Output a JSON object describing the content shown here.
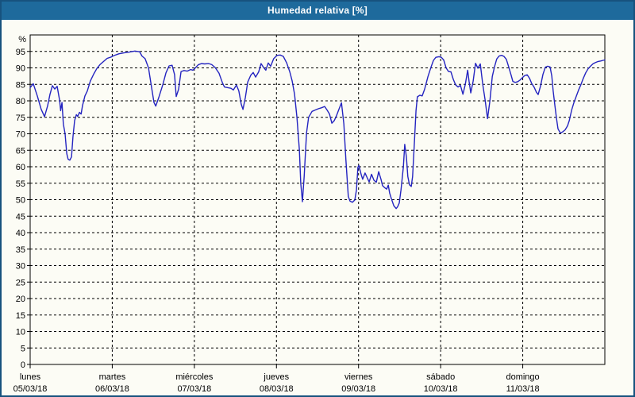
{
  "header": {
    "title": "Humedad relativa [%]"
  },
  "colors": {
    "titlebar_bg": "#1e6a9c",
    "titlebar_text": "#ffffff",
    "page_bg": "#fcfcf5",
    "page_border": "#17527e",
    "grid": "#000000",
    "axis": "#000000",
    "line": "#2424c0"
  },
  "chart_data": {
    "type": "line",
    "title": "Humedad relativa [%]",
    "unit_label": "%",
    "legend": "none",
    "grid": "dashed",
    "y_axis": {
      "min": 0,
      "max": 100,
      "tick_step": 5,
      "tick_labels": [
        "0",
        "5",
        "10",
        "15",
        "20",
        "25",
        "30",
        "35",
        "40",
        "45",
        "50",
        "55",
        "60",
        "65",
        "70",
        "75",
        "80",
        "85",
        "90",
        "95"
      ]
    },
    "x_axis": {
      "total_hours": 168,
      "hours_per_day": 24,
      "labels": [
        {
          "day": "lunes",
          "date": "05/03/18"
        },
        {
          "day": "martes",
          "date": "06/03/18"
        },
        {
          "day": "miércoles",
          "date": "07/03/18"
        },
        {
          "day": "jueves",
          "date": "08/03/18"
        },
        {
          "day": "viernes",
          "date": "09/03/18"
        },
        {
          "day": "sábado",
          "date": "10/03/18"
        },
        {
          "day": "domingo",
          "date": "11/03/18"
        }
      ]
    },
    "series_name": "Humedad relativa",
    "points": [
      [
        0,
        84
      ],
      [
        0.9,
        85.2
      ],
      [
        2.1,
        81.5
      ],
      [
        3.2,
        77.5
      ],
      [
        4.2,
        75.2
      ],
      [
        5.1,
        78.5
      ],
      [
        5.8,
        82
      ],
      [
        6.5,
        84.6
      ],
      [
        7.2,
        83.6
      ],
      [
        7.9,
        84.4
      ],
      [
        8.6,
        80.2
      ],
      [
        8.9,
        77
      ],
      [
        9.3,
        79.5
      ],
      [
        9.7,
        73
      ],
      [
        10.2,
        70
      ],
      [
        10.7,
        64
      ],
      [
        11.1,
        62.3
      ],
      [
        11.6,
        62
      ],
      [
        12.1,
        63
      ],
      [
        12.5,
        69
      ],
      [
        13,
        74
      ],
      [
        13.5,
        75.8
      ],
      [
        13.9,
        75.3
      ],
      [
        14.4,
        76.5
      ],
      [
        14.9,
        76
      ],
      [
        15.3,
        78.5
      ],
      [
        16,
        81.5
      ],
      [
        16.7,
        83
      ],
      [
        17.6,
        86
      ],
      [
        18.6,
        88.2
      ],
      [
        19.5,
        89.8
      ],
      [
        20.4,
        91
      ],
      [
        21.3,
        91.8
      ],
      [
        22.5,
        92.9
      ],
      [
        23.7,
        93.3
      ],
      [
        24.4,
        93.7
      ],
      [
        26,
        94.3
      ],
      [
        27.6,
        94.6
      ],
      [
        29,
        94.8
      ],
      [
        30.6,
        95.1
      ],
      [
        32,
        94.9
      ],
      [
        32.7,
        93.6
      ],
      [
        33.6,
        92.8
      ],
      [
        34.6,
        90
      ],
      [
        35.5,
        84
      ],
      [
        36.2,
        79.5
      ],
      [
        36.7,
        78.4
      ],
      [
        37.6,
        81
      ],
      [
        38.8,
        85
      ],
      [
        39.7,
        88.5
      ],
      [
        40.6,
        90.6
      ],
      [
        41.5,
        90.8
      ],
      [
        42.2,
        88
      ],
      [
        42.7,
        81.3
      ],
      [
        43.4,
        83.5
      ],
      [
        44.1,
        88.9
      ],
      [
        45,
        89.2
      ],
      [
        45.9,
        89
      ],
      [
        46.9,
        89.5
      ],
      [
        47.6,
        89.3
      ],
      [
        48.3,
        90
      ],
      [
        49.2,
        91
      ],
      [
        50.1,
        91.3
      ],
      [
        51,
        91.2
      ],
      [
        52.2,
        91.3
      ],
      [
        53.1,
        91
      ],
      [
        54.1,
        90.1
      ],
      [
        55.2,
        88.4
      ],
      [
        56.2,
        85.5
      ],
      [
        56.8,
        84.2
      ],
      [
        57.8,
        84
      ],
      [
        58.7,
        83.8
      ],
      [
        59.4,
        83.3
      ],
      [
        60.3,
        84.8
      ],
      [
        61,
        83
      ],
      [
        61.7,
        79
      ],
      [
        62.2,
        77.4
      ],
      [
        62.9,
        81
      ],
      [
        63.6,
        85.7
      ],
      [
        64.5,
        87.8
      ],
      [
        65.2,
        88.6
      ],
      [
        65.9,
        87.2
      ],
      [
        66.8,
        88.8
      ],
      [
        67.5,
        91.3
      ],
      [
        68.2,
        90.2
      ],
      [
        68.9,
        89.3
      ],
      [
        69.6,
        91.5
      ],
      [
        70.3,
        90.5
      ],
      [
        71.2,
        92.8
      ],
      [
        72.2,
        93.8
      ],
      [
        73.1,
        93.9
      ],
      [
        74,
        93.5
      ],
      [
        75,
        91.5
      ],
      [
        75.9,
        88.8
      ],
      [
        76.6,
        86
      ],
      [
        77.3,
        82
      ],
      [
        78,
        75
      ],
      [
        78.7,
        65
      ],
      [
        79.1,
        55
      ],
      [
        79.6,
        49.4
      ],
      [
        80.1,
        57
      ],
      [
        80.8,
        70.3
      ],
      [
        81.4,
        75
      ],
      [
        82.4,
        76.8
      ],
      [
        83.3,
        77.2
      ],
      [
        84.2,
        77.6
      ],
      [
        85.2,
        77.9
      ],
      [
        86.1,
        78.3
      ],
      [
        86.8,
        77.2
      ],
      [
        87.5,
        76
      ],
      [
        88.2,
        73.2
      ],
      [
        88.9,
        74
      ],
      [
        89.6,
        75.6
      ],
      [
        90.3,
        77.5
      ],
      [
        91,
        79.4
      ],
      [
        91.7,
        73
      ],
      [
        92.3,
        62
      ],
      [
        93,
        51
      ],
      [
        93.5,
        49.6
      ],
      [
        94.2,
        49.2
      ],
      [
        94.9,
        49.9
      ],
      [
        95.4,
        53
      ],
      [
        95.8,
        59.8
      ],
      [
        96.1,
        60.4
      ],
      [
        96.8,
        57.5
      ],
      [
        97.2,
        56.2
      ],
      [
        97.9,
        58.1
      ],
      [
        98.6,
        56.5
      ],
      [
        99.1,
        55.4
      ],
      [
        99.8,
        57.7
      ],
      [
        100.5,
        55.9
      ],
      [
        101.2,
        55.3
      ],
      [
        101.9,
        58.5
      ],
      [
        102.6,
        56
      ],
      [
        103,
        54.3
      ],
      [
        103.7,
        53.6
      ],
      [
        104.2,
        53.2
      ],
      [
        104.7,
        54.4
      ],
      [
        105.1,
        52
      ],
      [
        105.6,
        50.3
      ],
      [
        106.3,
        48.2
      ],
      [
        107,
        47.3
      ],
      [
        107.4,
        47.8
      ],
      [
        107.9,
        49
      ],
      [
        108.4,
        53
      ],
      [
        109.1,
        60
      ],
      [
        109.5,
        66.8
      ],
      [
        110,
        63
      ],
      [
        110.4,
        57
      ],
      [
        110.9,
        54.5
      ],
      [
        111.4,
        54
      ],
      [
        111.8,
        57
      ],
      [
        112.3,
        67
      ],
      [
        112.8,
        77
      ],
      [
        113.2,
        81.2
      ],
      [
        113.9,
        81.7
      ],
      [
        114.6,
        81.5
      ],
      [
        115.3,
        83.5
      ],
      [
        116.3,
        87.4
      ],
      [
        117.2,
        90.3
      ],
      [
        117.9,
        92.3
      ],
      [
        118.6,
        93.2
      ],
      [
        119.5,
        93.4
      ],
      [
        120.2,
        93.2
      ],
      [
        120.9,
        92.4
      ],
      [
        121.6,
        90
      ],
      [
        122.3,
        88.9
      ],
      [
        123,
        88.8
      ],
      [
        123.7,
        86.5
      ],
      [
        124.4,
        84.8
      ],
      [
        125.1,
        84.2
      ],
      [
        125.8,
        84.7
      ],
      [
        126.5,
        82
      ],
      [
        127.2,
        85
      ],
      [
        127.9,
        89.3
      ],
      [
        128.3,
        86
      ],
      [
        128.8,
        82.4
      ],
      [
        129.5,
        86
      ],
      [
        130.2,
        91.4
      ],
      [
        130.9,
        89.9
      ],
      [
        131.6,
        91.2
      ],
      [
        132.3,
        85
      ],
      [
        133,
        80.2
      ],
      [
        133.7,
        74.6
      ],
      [
        134.4,
        80
      ],
      [
        135.1,
        87.4
      ],
      [
        135.8,
        90.5
      ],
      [
        136.4,
        92.7
      ],
      [
        137.1,
        93.6
      ],
      [
        137.8,
        93.8
      ],
      [
        138.5,
        93.5
      ],
      [
        139.2,
        92.6
      ],
      [
        139.9,
        90.3
      ],
      [
        140.6,
        87.8
      ],
      [
        141.1,
        85.9
      ],
      [
        141.8,
        85.6
      ],
      [
        142.5,
        85.8
      ],
      [
        143.2,
        86.3
      ],
      [
        143.9,
        87
      ],
      [
        144.6,
        87.7
      ],
      [
        145.3,
        87.9
      ],
      [
        146,
        86.8
      ],
      [
        146.6,
        85.3
      ],
      [
        147.3,
        84.2
      ],
      [
        148,
        82.6
      ],
      [
        148.5,
        81.9
      ],
      [
        149.2,
        84.5
      ],
      [
        149.9,
        88
      ],
      [
        150.6,
        90.2
      ],
      [
        151.3,
        90.5
      ],
      [
        152,
        90.3
      ],
      [
        152.5,
        87.5
      ],
      [
        152.9,
        83
      ],
      [
        153.4,
        78.5
      ],
      [
        153.9,
        74.5
      ],
      [
        154.3,
        71.5
      ],
      [
        155,
        70.2
      ],
      [
        155.7,
        70.6
      ],
      [
        156.4,
        71.2
      ],
      [
        157.1,
        72.4
      ],
      [
        157.6,
        74
      ],
      [
        158.3,
        77.2
      ],
      [
        159,
        79.6
      ],
      [
        159.7,
        81.5
      ],
      [
        160.3,
        83.2
      ],
      [
        161,
        84.9
      ],
      [
        161.7,
        86.8
      ],
      [
        162.4,
        88.5
      ],
      [
        163.1,
        89.7
      ],
      [
        163.8,
        90.5
      ],
      [
        164.5,
        91.2
      ],
      [
        165.2,
        91.6
      ],
      [
        165.9,
        91.9
      ],
      [
        166.8,
        92.1
      ],
      [
        167.5,
        92.3
      ],
      [
        168,
        92.4
      ]
    ]
  }
}
